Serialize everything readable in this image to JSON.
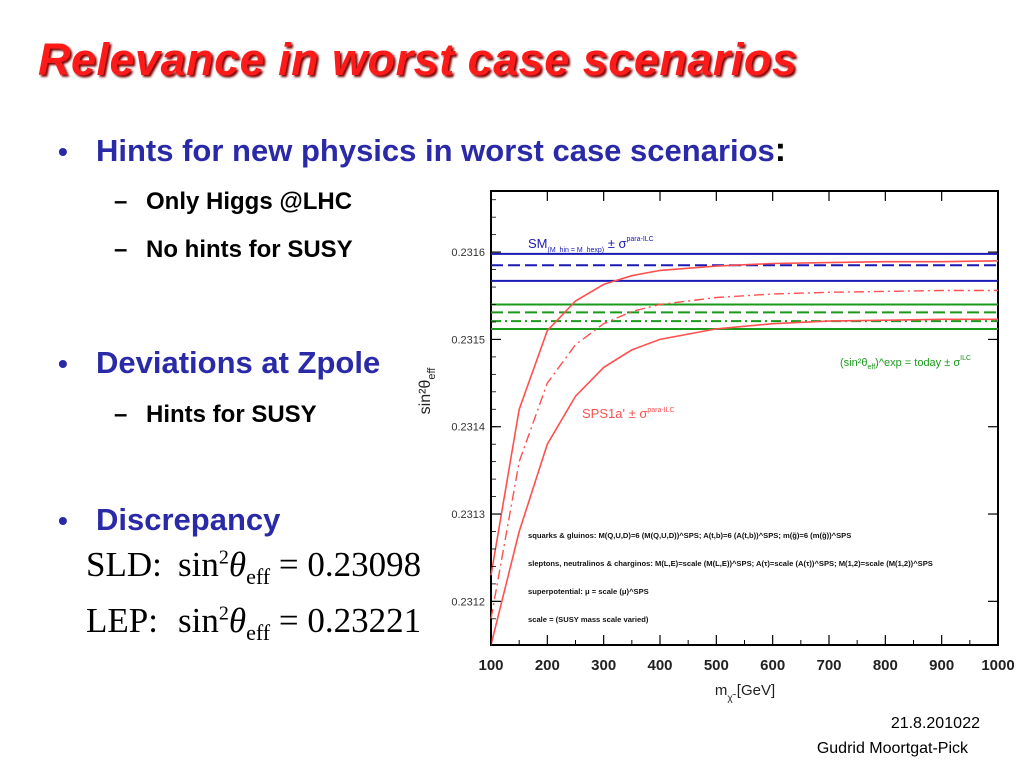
{
  "slide": {
    "title": "Relevance in worst case scenarios",
    "bullets": [
      {
        "text": "Hints for new physics in worst case scenarios",
        "suffix": ":"
      },
      {
        "text": "Deviations at Zpole"
      },
      {
        "text": "Discrepancy"
      }
    ],
    "subs": {
      "only_higgs": "Only Higgs @LHC",
      "no_hints": "No hints for SUSY",
      "hints_susy": "Hints for SUSY"
    },
    "equations": [
      {
        "label": "SLD:",
        "lhs": "sin",
        "exp": "2",
        "theta": "θ",
        "sub": "eff",
        "rhs": "= 0.23098"
      },
      {
        "label": "LEP:",
        "lhs": "sin",
        "exp": "2",
        "theta": "θ",
        "sub": "eff",
        "rhs": "= 0.23221"
      }
    ],
    "footer": {
      "date": "21.8.2010",
      "page": "22",
      "author": "Gudrid Moortgat-Pick"
    }
  },
  "colors": {
    "title": "#ff1a1a",
    "bullet": "#2a2aa8",
    "sm": "#1a1ab4",
    "today": "#1a9a1a",
    "sps": "#ff5050"
  },
  "chart_data": {
    "type": "line",
    "xlabel": "m",
    "xlabel_sub": "χ̃",
    "xlabel_unit": "[GeV]",
    "ylabel": "sin²θ",
    "ylabel_sub": "eff",
    "xlim": [
      100,
      1000
    ],
    "ylim": [
      0.23115,
      0.23167
    ],
    "x_ticks": [
      "100",
      "200",
      "300",
      "400",
      "500",
      "600",
      "700",
      "800",
      "900",
      "1000"
    ],
    "y_ticks": [
      "0.2312",
      "0.2313",
      "0.2314",
      "0.2315",
      "0.2316"
    ],
    "bands": [
      {
        "name": "SM",
        "name_sub": "(M_hin = M_hexp)",
        "suffix": "± σ",
        "suffix_sup": "para-ILC",
        "color": "#1a1ab4",
        "lines": [
          {
            "y": 0.231598,
            "style": "solid"
          },
          {
            "y": 0.231585,
            "style": "dashed"
          },
          {
            "y": 0.231567,
            "style": "solid"
          }
        ]
      },
      {
        "name": "(sin²θ",
        "name_sub": "eff",
        "suffix": ")^exp = today ± σ",
        "suffix_sup": "ILC",
        "color": "#1a9a1a",
        "lines": [
          {
            "y": 0.23154,
            "style": "solid"
          },
          {
            "y": 0.231531,
            "style": "dashed"
          },
          {
            "y": 0.231521,
            "style": "dashdot"
          },
          {
            "y": 0.231512,
            "style": "solid"
          }
        ]
      }
    ],
    "series": [
      {
        "name": "SPS1a' ± σ",
        "name_sup": "para-ILC",
        "color": "#ff5050",
        "style": "dashdot",
        "x": [
          100,
          150,
          200,
          250,
          300,
          350,
          400,
          500,
          600,
          700,
          800,
          900,
          1000
        ],
        "y": [
          0.23118,
          0.23136,
          0.23145,
          0.231494,
          0.231518,
          0.231532,
          0.23154,
          0.231548,
          0.231552,
          0.231554,
          0.231555,
          0.231556,
          0.231556
        ]
      },
      {
        "color": "#ff5050",
        "style": "solid",
        "x": [
          100,
          150,
          200,
          250,
          300,
          350,
          400,
          500,
          600,
          700,
          800,
          900,
          1000
        ],
        "y": [
          0.23123,
          0.23142,
          0.23151,
          0.231544,
          0.231563,
          0.231573,
          0.231579,
          0.231584,
          0.231587,
          0.231588,
          0.231589,
          0.231589,
          0.23159
        ]
      },
      {
        "color": "#ff5050",
        "style": "solid",
        "x": [
          100,
          150,
          200,
          250,
          300,
          350,
          400,
          500,
          600,
          700,
          800,
          900,
          1000
        ],
        "y": [
          0.23115,
          0.23128,
          0.23138,
          0.231435,
          0.231468,
          0.231488,
          0.2315,
          0.231512,
          0.231518,
          0.231521,
          0.231522,
          0.231523,
          0.231523
        ]
      }
    ],
    "legend_notes": [
      "squarks & gluinos: M(Q,U,D)=6 (M(Q,U,D))^SPS; A(t,b)=6 (A(t,b))^SPS; m(g̃)=6 (m(g̃))^SPS",
      "sleptons, neutralinos & charginos: M(L,E)=scale (M(L,E))^SPS; A(τ)=scale (A(τ))^SPS; M(1,2)=scale (M(1,2))^SPS",
      "superpotential:  μ = scale (μ)^SPS",
      "scale = (SUSY mass scale varied)"
    ]
  }
}
